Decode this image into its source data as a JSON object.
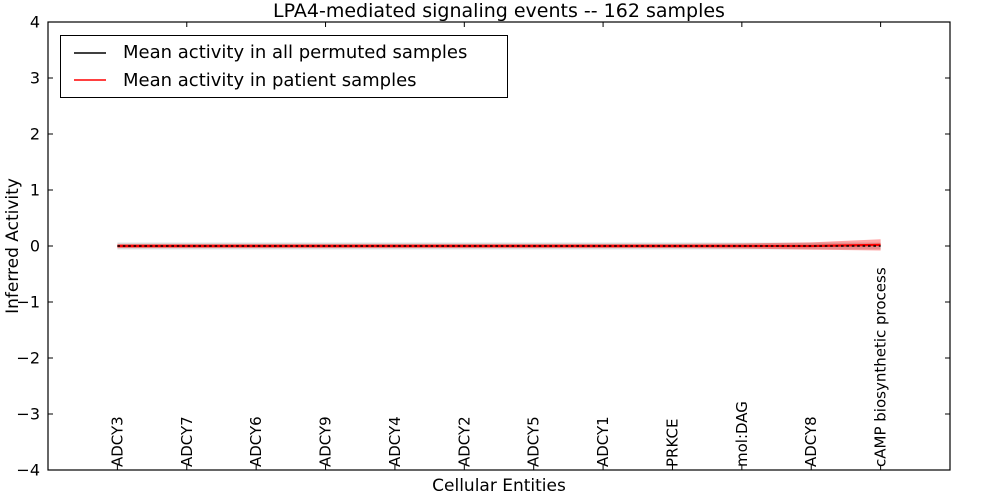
{
  "chart_data": {
    "type": "line",
    "title": "LPA4-mediated signaling events -- 162 samples",
    "xlabel": "Cellular Entities",
    "ylabel": "Inferred Activity",
    "ylim": [
      -4,
      4
    ],
    "ytick_values": [
      4,
      3,
      2,
      1,
      0,
      -1,
      -2,
      -3,
      -4
    ],
    "ytick_labels": [
      "4",
      "3",
      "2",
      "1",
      "0",
      "−1",
      "−2",
      "−3",
      "−4"
    ],
    "grid": false,
    "legend_position": "upper left",
    "categories": [
      "ADCY3",
      "ADCY7",
      "ADCY6",
      "ADCY9",
      "ADCY4",
      "ADCY2",
      "ADCY5",
      "ADCY1",
      "PRKCE",
      "mol:DAG",
      "ADCY8",
      "cAMP biosynthetic process"
    ],
    "top_ticks_at_indices": [
      1,
      3,
      5,
      7,
      9,
      11
    ],
    "series": [
      {
        "name": "Mean activity in all permuted samples",
        "color": "#000000",
        "line_style": "dashed",
        "values": [
          0,
          0,
          0,
          0,
          0,
          0,
          0,
          0,
          0,
          0,
          0,
          0
        ],
        "band_std": [
          0.06,
          0.06,
          0.06,
          0.06,
          0.06,
          0.06,
          0.06,
          0.06,
          0.06,
          0.06,
          0.06,
          0.06
        ],
        "band_color": "#d8d8d8",
        "band_opacity": 1
      },
      {
        "name": "Mean activity in patient samples",
        "color": "#ff0000",
        "line_style": "solid",
        "values": [
          0,
          0,
          0,
          0,
          0,
          0,
          0,
          0,
          0,
          0,
          0,
          0.02
        ],
        "band_std": [
          0.035,
          0.035,
          0.035,
          0.035,
          0.035,
          0.035,
          0.035,
          0.035,
          0.035,
          0.045,
          0.065,
          0.1
        ],
        "band_color": "#ff0000",
        "band_opacity": 0.35
      }
    ]
  }
}
